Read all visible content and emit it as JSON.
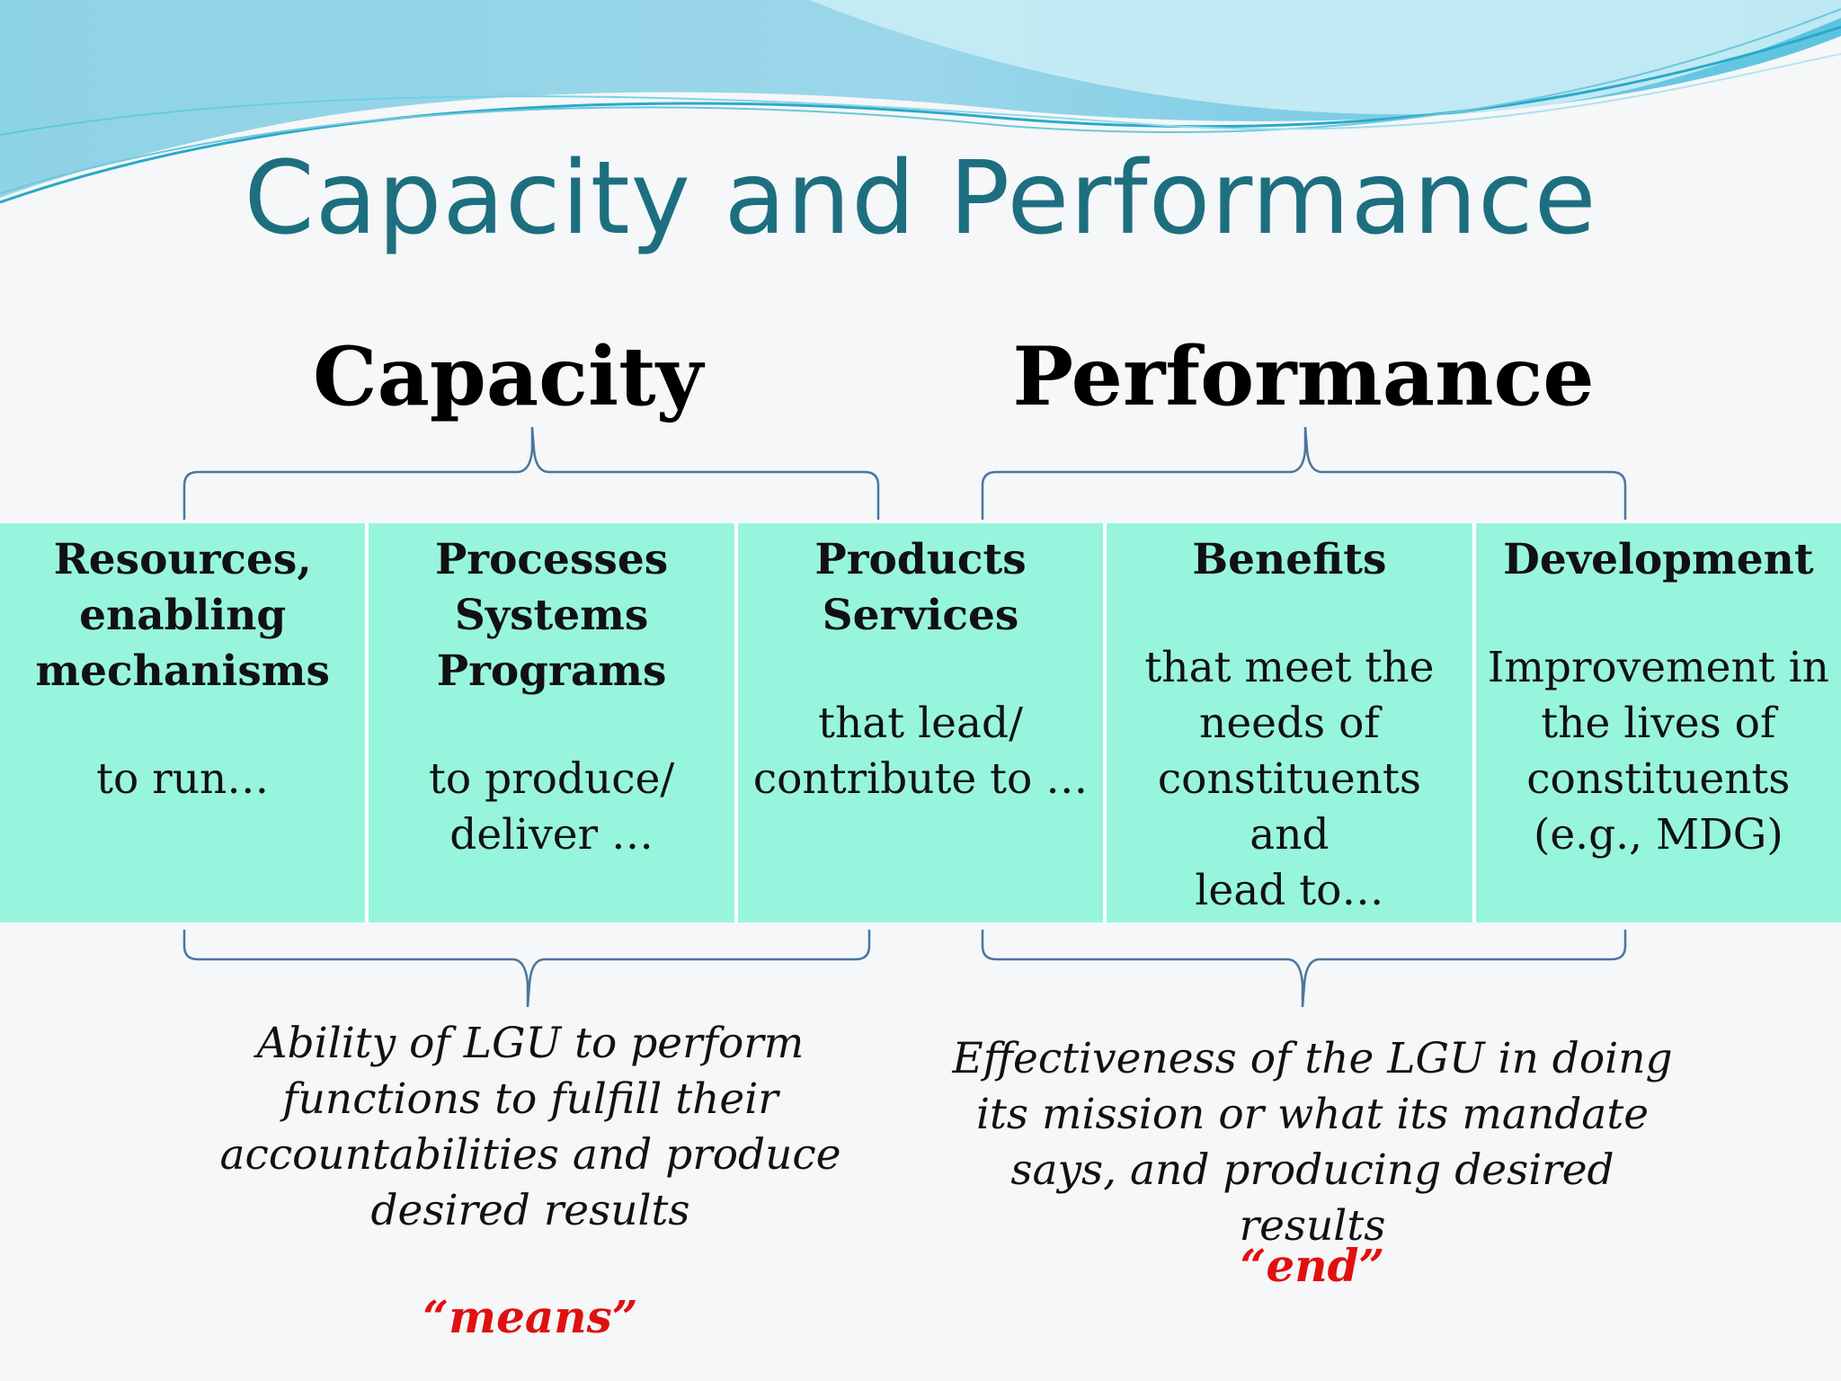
{
  "slide": {
    "title": "Capacity and Performance"
  },
  "groups": {
    "capacity_label": "Capacity",
    "performance_label": "Performance"
  },
  "cells": [
    {
      "heading": "Resources,\nenabling\nmechanisms",
      "body": "to run…"
    },
    {
      "heading": "Processes\nSystems\nPrograms",
      "body": "to produce/\ndeliver …"
    },
    {
      "heading": "Products\nServices",
      "body": "that lead/\ncontribute to …"
    },
    {
      "heading": "Benefits",
      "body": "that meet the\nneeds of\nconstituents and\nlead to…"
    },
    {
      "heading": "Development",
      "body": "Improvement in\nthe lives of\nconstituents\n(e.g., MDG)"
    }
  ],
  "descriptions": {
    "capacity_text": "Ability of LGU to perform\nfunctions to fulfill their\naccountabilities and produce\ndesired results",
    "capacity_tag": "“means”",
    "performance_text": "Effectiveness of the LGU in doing\nits mission or what its mandate\nsays, and producing desired results",
    "performance_tag": "“end”"
  },
  "colors": {
    "title": "#1d6f80",
    "cell_fill": "#98f5dd",
    "brace": "#4a76a0",
    "tag": "#e01010"
  }
}
